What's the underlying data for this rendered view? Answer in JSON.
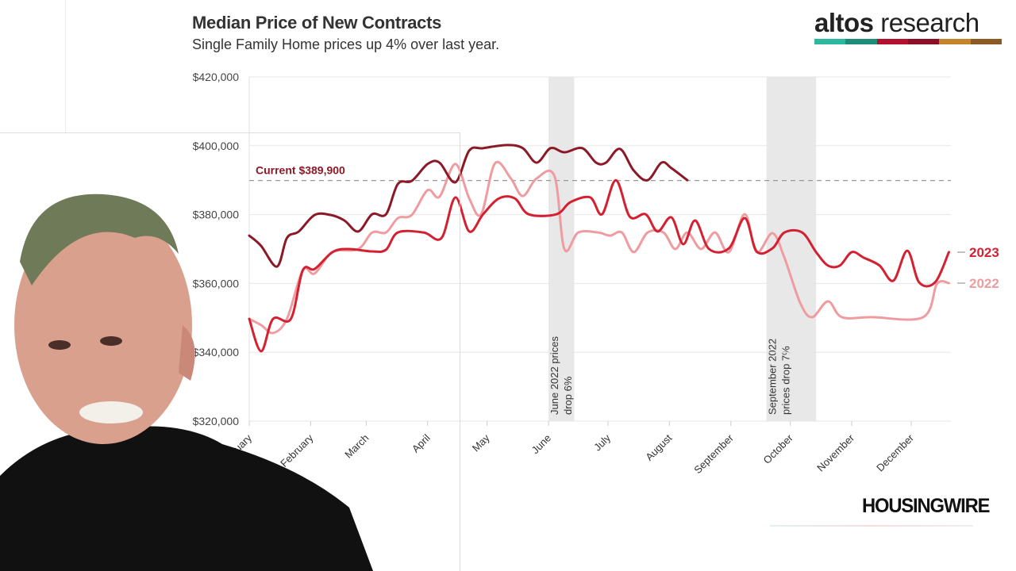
{
  "header": {
    "title": "Median Price of New Contracts",
    "subtitle": "Single Family Home prices up 4% over last year."
  },
  "logos": {
    "altos": {
      "bold": "altos",
      "light": "research",
      "bar_colors": [
        "#2bb89f",
        "#1d8c78",
        "#b3122e",
        "#8c0f27",
        "#c3842b",
        "#8a5a25"
      ]
    },
    "housingwire": "HOUSINGWIRE"
  },
  "chart_data": {
    "type": "line",
    "title": "Median Price of New Contracts",
    "subtitle": "Single Family Home prices up 4% over last year.",
    "xlabel": "",
    "ylabel": "",
    "ylim": [
      320000,
      420000
    ],
    "yticks": [
      320000,
      340000,
      360000,
      380000,
      400000,
      420000
    ],
    "ytick_labels": [
      "$320,000",
      "$340,000",
      "$360,000",
      "$380,000",
      "$400,000",
      "$420,000"
    ],
    "xtick_labels": [
      "January",
      "February",
      "March",
      "April",
      "May",
      "June",
      "July",
      "August",
      "September",
      "October",
      "November",
      "December"
    ],
    "grid": true,
    "reference_line": {
      "value": 389900,
      "label": "Current $389,900",
      "style": "dashed",
      "color": "#999999"
    },
    "shaded_regions": [
      {
        "start": "06-01",
        "end": "06-14",
        "label": "June 2022 prices drop 6%"
      },
      {
        "start": "09-19",
        "end": "10-14",
        "label": "September 2022 prices drop 7%"
      }
    ],
    "series": [
      {
        "color": "#8b1a26",
        "x": [
          "01-01",
          "01-07",
          "01-15",
          "01-20",
          "01-26",
          "02-03",
          "02-11",
          "02-18",
          "02-25",
          "03-04",
          "03-11",
          "03-17",
          "03-24",
          "04-01",
          "04-07",
          "04-15",
          "04-22",
          "04-29",
          "05-11",
          "05-19",
          "05-26",
          "06-02",
          "06-09",
          "06-18",
          "06-25",
          "06-30",
          "07-07",
          "07-14",
          "07-21",
          "07-28",
          "08-02",
          "08-10"
        ],
        "y": [
          373900,
          370900,
          364900,
          373200,
          375100,
          379900,
          379900,
          378300,
          375100,
          380100,
          380100,
          388900,
          389800,
          394700,
          395100,
          389400,
          398600,
          399300,
          400200,
          399300,
          395100,
          399300,
          398100,
          399300,
          395100,
          395100,
          399100,
          392800,
          390000,
          395100,
          393500,
          390000
        ]
      },
      {
        "name": "2023",
        "color": "#d42131",
        "x": [
          "01-01",
          "01-07",
          "01-13",
          "01-22",
          "01-28",
          "02-03",
          "02-12",
          "02-20",
          "03-04",
          "03-11",
          "03-17",
          "03-30",
          "04-08",
          "04-15",
          "04-22",
          "04-29",
          "05-07",
          "05-15",
          "05-22",
          "06-05",
          "06-12",
          "06-22",
          "06-28",
          "07-05",
          "07-12",
          "07-20",
          "07-26",
          "08-02",
          "08-08",
          "08-14",
          "08-21",
          "08-31",
          "09-08",
          "09-14",
          "09-22",
          "09-28",
          "10-07",
          "10-14",
          "10-20",
          "10-26",
          "11-01",
          "11-07",
          "11-15",
          "11-22",
          "11-29",
          "12-05",
          "12-13",
          "12-20"
        ],
        "y": [
          349700,
          340300,
          349700,
          349700,
          363800,
          364200,
          369100,
          370000,
          369300,
          369800,
          374800,
          374800,
          373200,
          385000,
          375100,
          380100,
          384700,
          384700,
          380100,
          380100,
          383600,
          385000,
          380100,
          390000,
          379400,
          380100,
          375100,
          379200,
          371400,
          378300,
          370000,
          370200,
          379000,
          369300,
          370200,
          374800,
          374800,
          369100,
          365200,
          365200,
          369100,
          367500,
          365200,
          360800,
          369500,
          360300,
          360300,
          369100
        ]
      },
      {
        "name": "2022",
        "color": "#ef9ca0",
        "x": [
          "01-01",
          "01-07",
          "01-13",
          "01-20",
          "01-28",
          "02-03",
          "02-12",
          "02-25",
          "03-04",
          "03-11",
          "03-17",
          "03-24",
          "04-01",
          "04-07",
          "04-15",
          "04-22",
          "04-28",
          "05-05",
          "05-13",
          "05-19",
          "05-26",
          "06-04",
          "06-09",
          "06-16",
          "06-26",
          "07-02",
          "07-08",
          "07-14",
          "07-21",
          "07-29",
          "08-04",
          "08-10",
          "08-17",
          "08-24",
          "08-31",
          "09-08",
          "09-14",
          "09-22",
          "09-28",
          "10-06",
          "10-12",
          "10-20",
          "10-27",
          "11-11",
          "12-07",
          "12-14",
          "12-20"
        ],
        "y": [
          349700,
          347900,
          345600,
          349700,
          363800,
          362900,
          369100,
          370000,
          374800,
          374800,
          379000,
          379900,
          387100,
          385200,
          394700,
          384700,
          380100,
          394900,
          390500,
          385400,
          390500,
          391200,
          370000,
          374800,
          374800,
          373900,
          374800,
          369100,
          374800,
          374800,
          370000,
          374800,
          370000,
          374800,
          369100,
          380100,
          369100,
          374600,
          367500,
          354300,
          350200,
          354800,
          350200,
          350200,
          350200,
          359900,
          360100
        ]
      }
    ]
  }
}
